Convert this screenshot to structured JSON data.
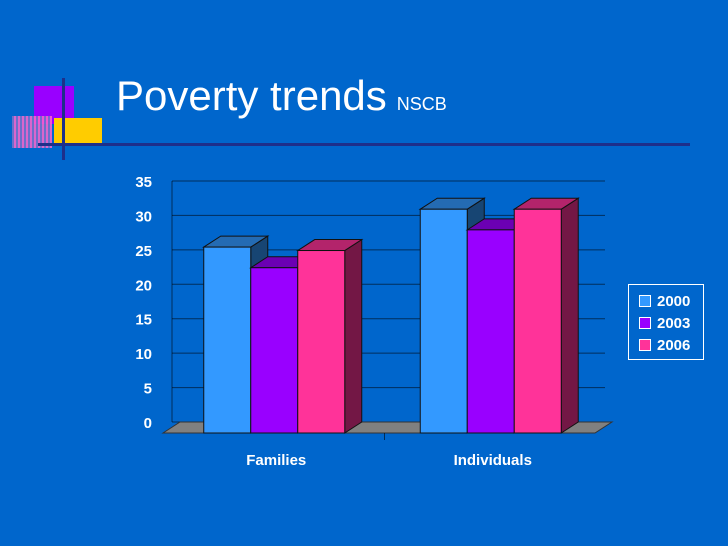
{
  "title": "Poverty trends",
  "subtitle": "NSCB",
  "colors": {
    "background": "#0066cc",
    "series": [
      "#3399ff",
      "#9900ff",
      "#ff3399"
    ]
  },
  "chart_data": {
    "type": "bar",
    "categories": [
      "Families",
      "Individuals"
    ],
    "series": [
      {
        "name": "2000",
        "values": [
          27.0,
          32.5
        ]
      },
      {
        "name": "2003",
        "values": [
          24.0,
          29.5
        ]
      },
      {
        "name": "2006",
        "values": [
          26.5,
          32.5
        ]
      }
    ],
    "yticks": [
      "0",
      "5",
      "10",
      "15",
      "20",
      "25",
      "30",
      "35"
    ],
    "ylim": [
      0,
      35
    ],
    "grid": true,
    "legend": "right",
    "style": "3d-clustered"
  }
}
